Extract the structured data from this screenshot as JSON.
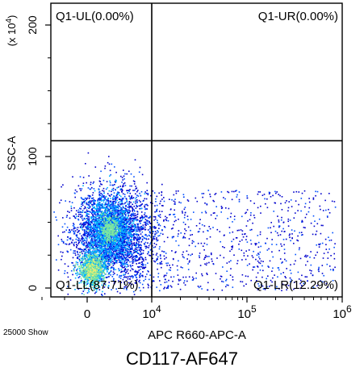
{
  "chart_data": {
    "type": "scatter",
    "subtype": "flow-cytometry-density-dot-plot",
    "xlabel": "APC R660-APC-A",
    "ylabel": "SSC-A",
    "y_scale_label": "(x 10",
    "y_scale_exp": "4",
    "y_scale_close": ")",
    "x_scale": "biexponential",
    "x_ticks": [
      {
        "value": 0,
        "base": "0",
        "exp": ""
      },
      {
        "value": 10000,
        "base": "10",
        "exp": "4"
      },
      {
        "value": 100000,
        "base": "10",
        "exp": "5"
      },
      {
        "value": 1000000,
        "base": "10",
        "exp": "6"
      }
    ],
    "y_ticks": [
      {
        "value": 0,
        "label": "0"
      },
      {
        "value": 100,
        "label": "100"
      },
      {
        "value": 200,
        "label": "200"
      }
    ],
    "ylim": [
      0,
      230
    ],
    "gate": {
      "x": 10000,
      "y": 112
    },
    "quadrants": [
      {
        "name": "Q1-UL",
        "percent": 0.0,
        "label": "Q1-UL(0.00%)"
      },
      {
        "name": "Q1-UR",
        "percent": 0.0,
        "label": "Q1-UR(0.00%)"
      },
      {
        "name": "Q1-LL",
        "percent": 87.71,
        "label": "Q1-LL(87.71%)"
      },
      {
        "name": "Q1-LR",
        "percent": 12.29,
        "label": "Q1-LR(12.29%)"
      }
    ],
    "events_shown": "25000 Show",
    "caption": "CD117-AF647",
    "density_colors": [
      "#0000cc",
      "#0050ff",
      "#00b4ff",
      "#7de6a0",
      "#f5f06e"
    ],
    "grid": false
  }
}
